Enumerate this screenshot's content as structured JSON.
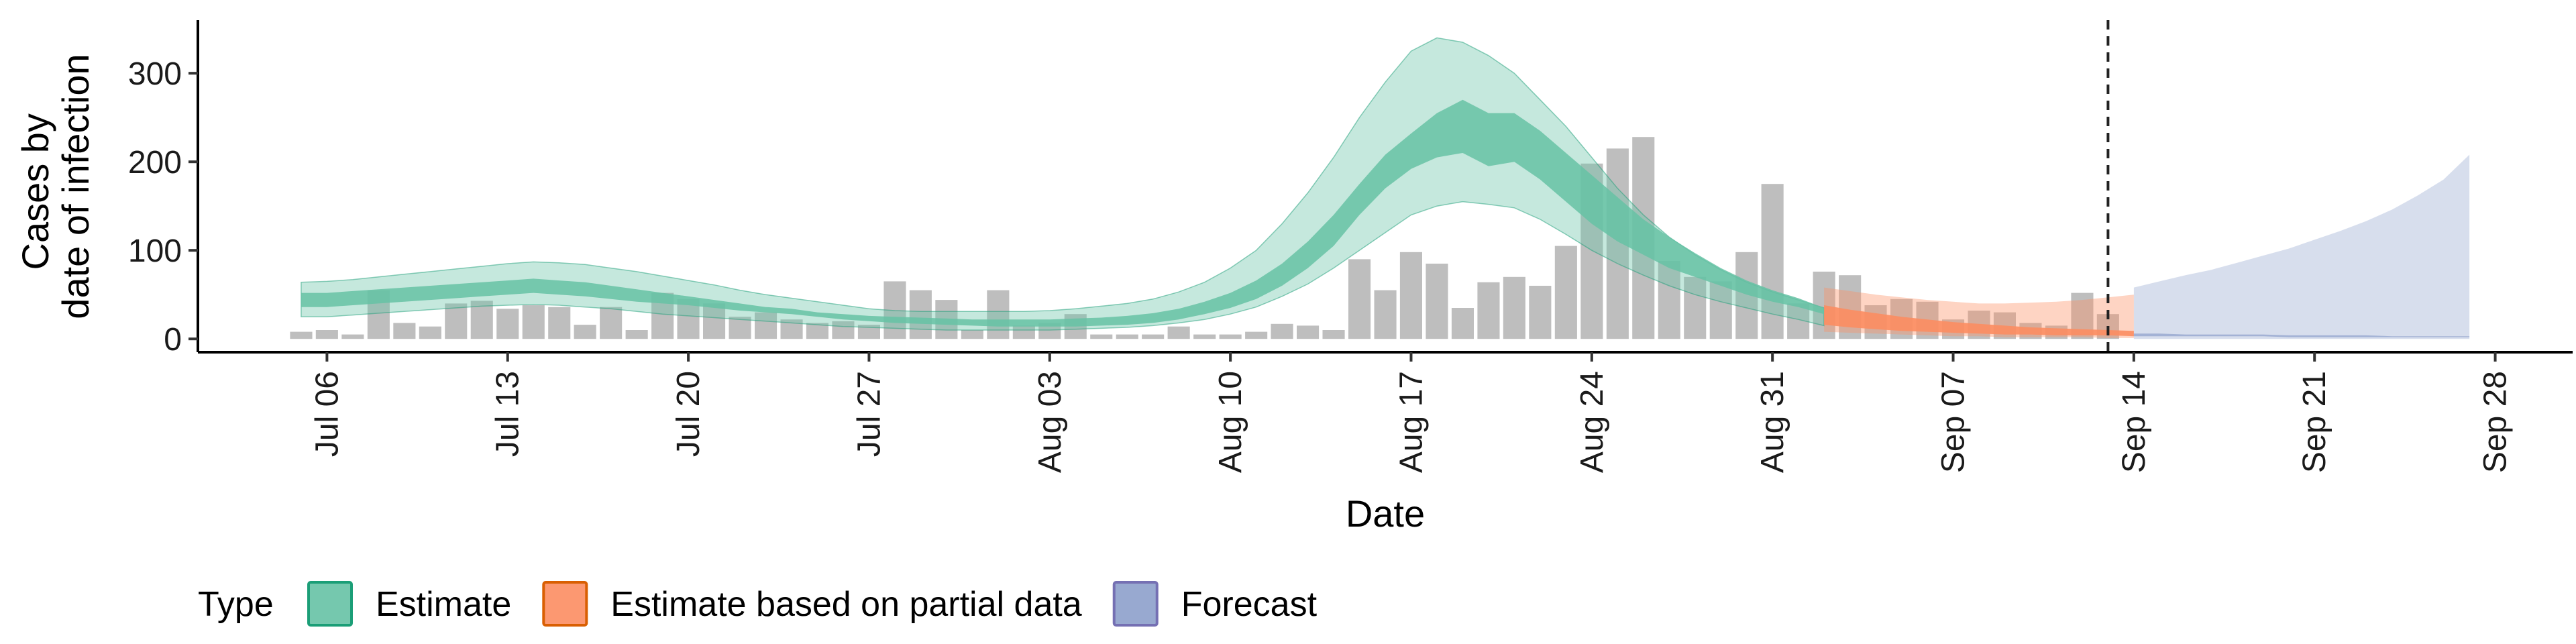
{
  "chart_data": {
    "type": "area",
    "xlabel": "Date",
    "ylabel_lines": [
      "Cases by",
      "date of infection"
    ],
    "ylim": [
      -15,
      360
    ],
    "y_ticks": [
      0,
      100,
      200,
      300
    ],
    "x_start": "2020-07-01",
    "x_end": "2020-10-01",
    "x_ticks": [
      {
        "date": "2020-07-06",
        "label": "Jul 06"
      },
      {
        "date": "2020-07-13",
        "label": "Jul 13"
      },
      {
        "date": "2020-07-20",
        "label": "Jul 20"
      },
      {
        "date": "2020-07-27",
        "label": "Jul 27"
      },
      {
        "date": "2020-08-03",
        "label": "Aug 03"
      },
      {
        "date": "2020-08-10",
        "label": "Aug 10"
      },
      {
        "date": "2020-08-17",
        "label": "Aug 17"
      },
      {
        "date": "2020-08-24",
        "label": "Aug 24"
      },
      {
        "date": "2020-08-31",
        "label": "Aug 31"
      },
      {
        "date": "2020-09-07",
        "label": "Sep 07"
      },
      {
        "date": "2020-09-14",
        "label": "Sep 14"
      },
      {
        "date": "2020-09-21",
        "label": "Sep 21"
      },
      {
        "date": "2020-09-28",
        "label": "Sep 28"
      }
    ],
    "observed_cases": {
      "start_date": "2020-07-05",
      "values": [
        8,
        10,
        5,
        55,
        18,
        14,
        40,
        43,
        34,
        38,
        36,
        16,
        36,
        10,
        52,
        45,
        40,
        25,
        30,
        22,
        18,
        20,
        16,
        65,
        55,
        44,
        10,
        55,
        15,
        18,
        28,
        5,
        5,
        5,
        14,
        5,
        5,
        8,
        17,
        15,
        10,
        90,
        55,
        98,
        85,
        35,
        64,
        70,
        60,
        105,
        198,
        215,
        228,
        88,
        70,
        65,
        98,
        175,
        40,
        76,
        72,
        38,
        45,
        42,
        22,
        32,
        30,
        18,
        15,
        52,
        28
      ],
      "color": "#bebebe"
    },
    "estimate_bands": {
      "start_date": "2020-07-05",
      "inner_lower": [
        36,
        36,
        38,
        40,
        42,
        44,
        46,
        48,
        50,
        52,
        50,
        48,
        45,
        42,
        40,
        38,
        35,
        32,
        30,
        28,
        25,
        22,
        20,
        18,
        17,
        16,
        15,
        14,
        14,
        14,
        14,
        15,
        16,
        18,
        22,
        28,
        35,
        45,
        60,
        80,
        105,
        140,
        170,
        192,
        205,
        210,
        195,
        200,
        180,
        155,
        130,
        110,
        95,
        80,
        70,
        60,
        50,
        42,
        36,
        28
      ],
      "inner_upper": [
        52,
        52,
        54,
        56,
        58,
        60,
        62,
        64,
        66,
        68,
        66,
        64,
        60,
        56,
        52,
        48,
        44,
        40,
        36,
        34,
        30,
        28,
        26,
        25,
        24,
        23,
        22,
        22,
        22,
        22,
        23,
        24,
        26,
        29,
        34,
        42,
        52,
        66,
        85,
        110,
        140,
        175,
        208,
        232,
        255,
        270,
        255,
        255,
        235,
        210,
        185,
        160,
        135,
        115,
        97,
        80,
        66,
        55,
        46,
        35
      ],
      "outer_lower": [
        25,
        25,
        27,
        29,
        31,
        33,
        35,
        37,
        38,
        39,
        38,
        36,
        34,
        31,
        28,
        26,
        24,
        22,
        20,
        18,
        16,
        14,
        13,
        12,
        11,
        10,
        10,
        10,
        10,
        10,
        11,
        12,
        13,
        15,
        18,
        22,
        28,
        36,
        48,
        62,
        80,
        100,
        120,
        140,
        150,
        155,
        152,
        148,
        135,
        118,
        100,
        85,
        72,
        60,
        50,
        42,
        35,
        28,
        22,
        15
      ],
      "outer_upper": [
        64,
        65,
        67,
        70,
        73,
        76,
        79,
        82,
        85,
        87,
        86,
        84,
        80,
        76,
        71,
        66,
        61,
        55,
        50,
        46,
        42,
        38,
        34,
        32,
        31,
        31,
        31,
        31,
        31,
        32,
        34,
        37,
        40,
        45,
        53,
        64,
        80,
        100,
        130,
        165,
        205,
        250,
        290,
        325,
        340,
        335,
        320,
        300,
        270,
        240,
        205,
        170,
        140,
        115,
        95,
        78,
        64,
        53,
        44,
        35
      ],
      "color": "#66c2a5",
      "line_color": "#1b9e77"
    },
    "partial_estimate_bands": {
      "start_date": "2020-09-02",
      "inner_lower": [
        16,
        13,
        11,
        9,
        8,
        7,
        6,
        5,
        5,
        4,
        4,
        4,
        3
      ],
      "inner_upper": [
        38,
        33,
        29,
        25,
        22,
        19,
        17,
        15,
        13,
        12,
        11,
        10,
        9
      ],
      "outer_lower": [
        8,
        7,
        6,
        5,
        4,
        3,
        3,
        2,
        2,
        2,
        2,
        1,
        1
      ],
      "outer_upper": [
        58,
        54,
        50,
        47,
        44,
        42,
        40,
        40,
        41,
        42,
        44,
        47,
        50
      ],
      "color": "#fc8d62"
    },
    "forecast_bands": {
      "start_date": "2020-09-14",
      "inner_lower": [
        3,
        3,
        3,
        3,
        3,
        3,
        2,
        2,
        2,
        2,
        2,
        2,
        2,
        2
      ],
      "inner_upper": [
        6,
        6,
        5,
        5,
        5,
        5,
        4,
        4,
        4,
        4,
        3,
        3,
        3,
        3
      ],
      "outer_lower": [
        0,
        0,
        0,
        0,
        0,
        0,
        0,
        0,
        0,
        0,
        0,
        0,
        0,
        0
      ],
      "outer_upper": [
        58,
        65,
        72,
        78,
        86,
        94,
        102,
        112,
        122,
        133,
        146,
        162,
        180,
        208
      ],
      "color": "#8da0cb"
    },
    "forecast_boundary_date": "2020-09-13",
    "legend": {
      "title": "Type",
      "items": [
        {
          "label": "Estimate",
          "fill": "#66c2a5",
          "stroke": "#1b9e77"
        },
        {
          "label": "Estimate based on partial data",
          "fill": "#fc8d62",
          "stroke": "#d95f02"
        },
        {
          "label": "Forecast",
          "fill": "#8da0cb",
          "stroke": "#7570b3"
        }
      ]
    }
  }
}
